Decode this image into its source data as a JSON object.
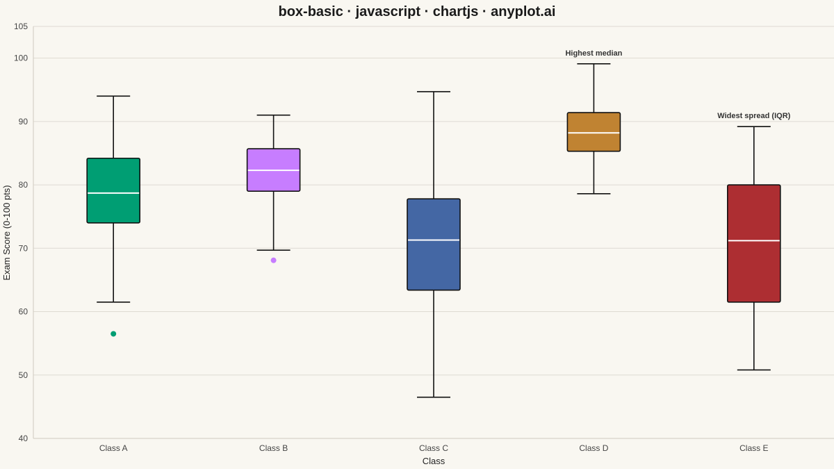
{
  "chart_data": {
    "type": "box",
    "title": "box-basic · javascript · chartjs · anyplot.ai",
    "xlabel": "Class",
    "ylabel": "Exam Score (0-100 pts)",
    "ylim": [
      40,
      105
    ],
    "yticks": [
      40,
      50,
      60,
      70,
      80,
      90,
      100,
      105
    ],
    "grid": true,
    "categories": [
      "Class A",
      "Class B",
      "Class C",
      "Class D",
      "Class E"
    ],
    "series": [
      {
        "category": "Class A",
        "color": "#009e73",
        "min": 61.5,
        "q1": 74,
        "median": 78.7,
        "q3": 84.2,
        "max": 94.0,
        "outliers": [
          56.5
        ]
      },
      {
        "category": "Class B",
        "color": "#c77dff",
        "min": 69.7,
        "q1": 79,
        "median": 82.3,
        "q3": 85.7,
        "max": 91.0,
        "outliers": [
          68.1
        ]
      },
      {
        "category": "Class C",
        "color": "#4467a4",
        "min": 46.5,
        "q1": 63.4,
        "median": 71.3,
        "q3": 77.8,
        "max": 94.7,
        "outliers": []
      },
      {
        "category": "Class D",
        "color": "#c08332",
        "min": 78.6,
        "q1": 85.3,
        "median": 88.2,
        "q3": 91.4,
        "max": 99.1,
        "outliers": []
      },
      {
        "category": "Class E",
        "color": "#ad2e32",
        "min": 50.8,
        "q1": 61.5,
        "median": 71.2,
        "q3": 80.0,
        "max": 89.2,
        "outliers": []
      }
    ],
    "annotations": [
      {
        "category": "Class D",
        "text": "Highest median",
        "value": 99.1
      },
      {
        "category": "Class E",
        "text": "Widest spread (IQR)",
        "value": 89.2
      }
    ]
  }
}
